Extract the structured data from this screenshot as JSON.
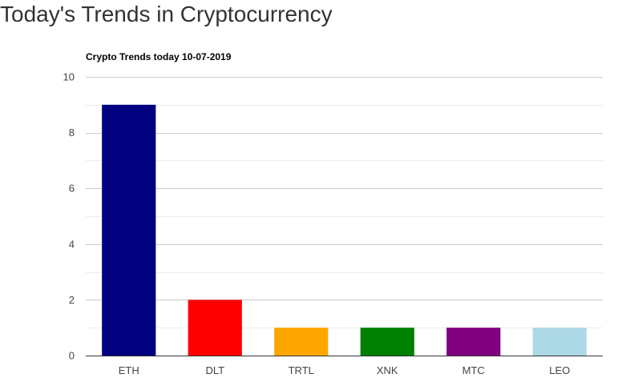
{
  "page": {
    "heading": "Today's Trends in Cryptocurrency"
  },
  "chart_data": {
    "type": "bar",
    "title": "Crypto Trends today 10-07-2019",
    "xlabel": "",
    "ylabel": "",
    "categories": [
      "ETH",
      "DLT",
      "TRTL",
      "XNK",
      "MTC",
      "LEO"
    ],
    "values": [
      9,
      2,
      1,
      1,
      1,
      1
    ],
    "colors": [
      "#000080",
      "#ff0000",
      "#ffa500",
      "#008000",
      "#800080",
      "#add8e6"
    ],
    "ylim": [
      0,
      10
    ],
    "yticks": [
      0,
      2,
      4,
      6,
      8,
      10
    ],
    "grid": true,
    "legend": "none"
  }
}
